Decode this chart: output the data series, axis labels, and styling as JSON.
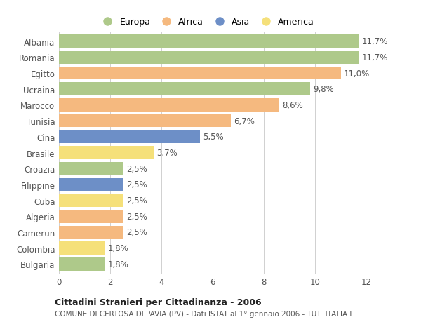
{
  "categories": [
    "Albania",
    "Romania",
    "Egitto",
    "Ucraina",
    "Marocco",
    "Tunisia",
    "Cina",
    "Brasile",
    "Croazia",
    "Filippine",
    "Cuba",
    "Algeria",
    "Camerun",
    "Colombia",
    "Bulgaria"
  ],
  "values": [
    11.7,
    11.7,
    11.0,
    9.8,
    8.6,
    6.7,
    5.5,
    3.7,
    2.5,
    2.5,
    2.5,
    2.5,
    2.5,
    1.8,
    1.8
  ],
  "labels": [
    "11,7%",
    "11,7%",
    "11,0%",
    "9,8%",
    "8,6%",
    "6,7%",
    "5,5%",
    "3,7%",
    "2,5%",
    "2,5%",
    "2,5%",
    "2,5%",
    "2,5%",
    "1,8%",
    "1,8%"
  ],
  "colors": [
    "#aec98a",
    "#aec98a",
    "#f5b97f",
    "#aec98a",
    "#f5b97f",
    "#f5b97f",
    "#6d8fc7",
    "#f5e07a",
    "#aec98a",
    "#6d8fc7",
    "#f5e07a",
    "#f5b97f",
    "#f5b97f",
    "#f5e07a",
    "#aec98a"
  ],
  "continent_colors": {
    "Europa": "#aec98a",
    "Africa": "#f5b97f",
    "Asia": "#6d8fc7",
    "America": "#f5e07a"
  },
  "title_bold": "Cittadini Stranieri per Cittadinanza - 2006",
  "subtitle": "COMUNE DI CERTOSA DI PAVIA (PV) - Dati ISTAT al 1° gennaio 2006 - TUTTITALIA.IT",
  "xlim": [
    0,
    12
  ],
  "xticks": [
    0,
    2,
    4,
    6,
    8,
    10,
    12
  ],
  "background_color": "#ffffff",
  "bar_height": 0.82,
  "grid_color": "#d0d0d0",
  "label_fontsize": 8.5,
  "tick_fontsize": 8.5
}
